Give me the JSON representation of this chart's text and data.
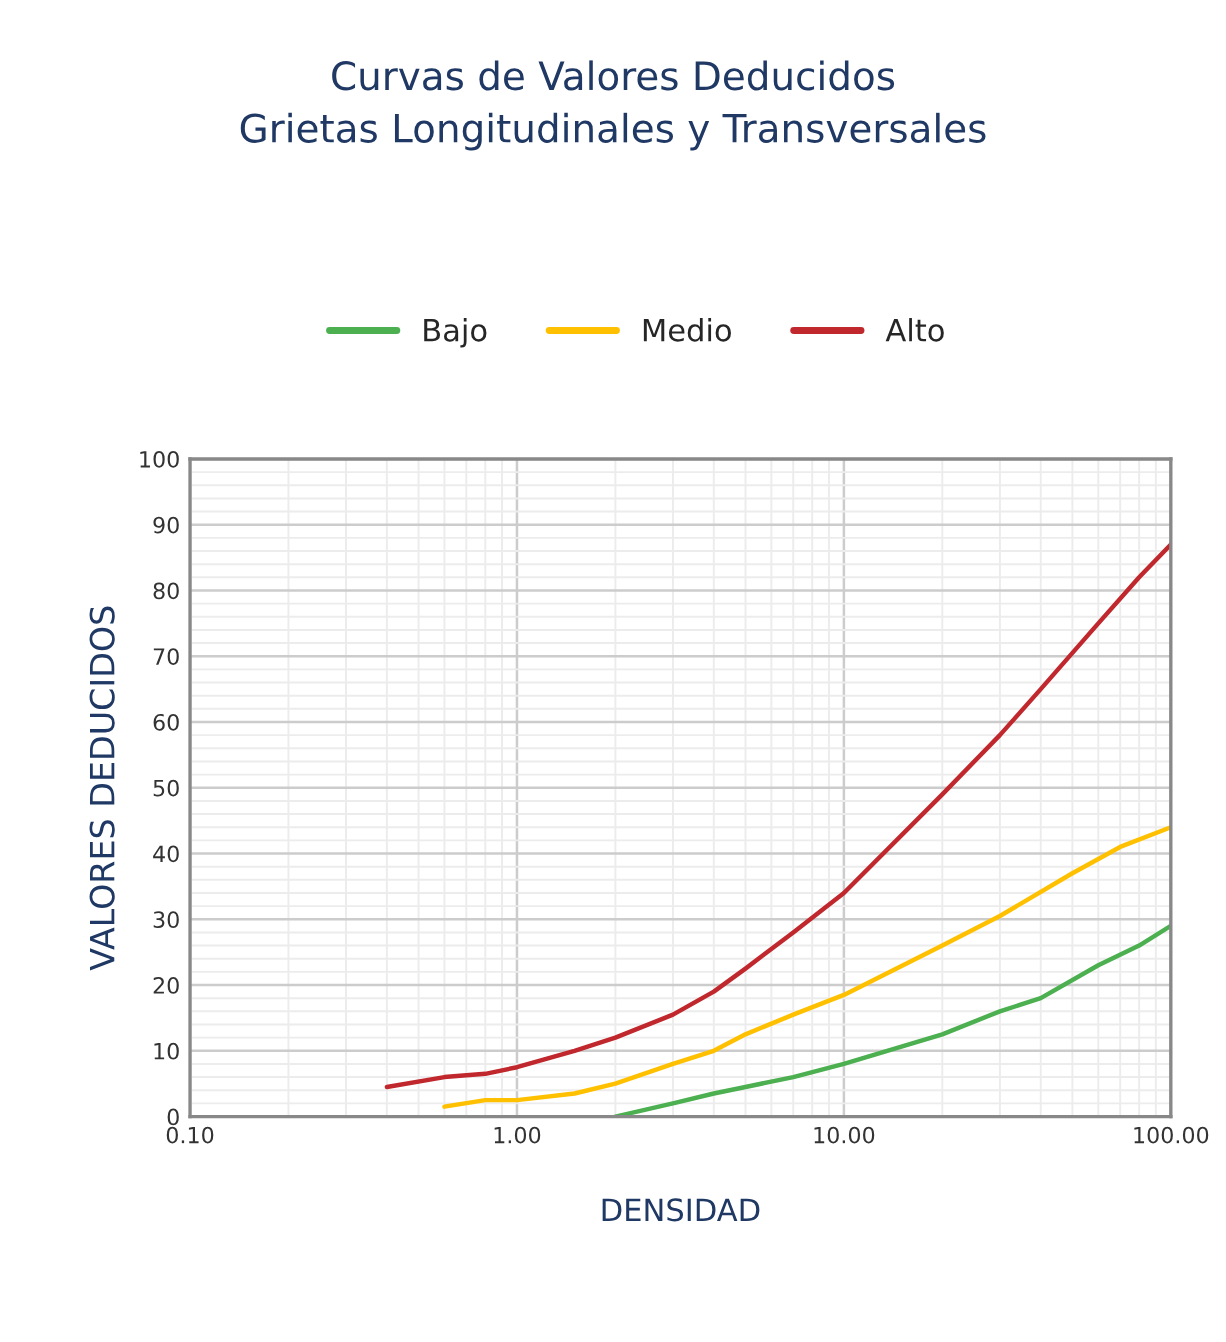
{
  "chart_data": {
    "type": "line",
    "title": "Curvas de Valores Deducidos\nGrietas Longitudinales y Transversales",
    "xlabel": "DENSIDAD",
    "ylabel": "VALORES DEDUCIDOS",
    "log": "x",
    "series": [
      {
        "name": "Bajo",
        "color": "#4caf50",
        "x": [
          2,
          3,
          4,
          5,
          7,
          10,
          20,
          30,
          40,
          60,
          80,
          100
        ],
        "values": [
          0,
          2,
          3.5,
          4.5,
          6,
          8,
          12.5,
          16,
          18,
          23,
          26,
          29
        ]
      },
      {
        "name": "Medio",
        "color": "#ffc000",
        "x": [
          0.6,
          0.8,
          1,
          1.5,
          2,
          3,
          4,
          5,
          7,
          10,
          20,
          30,
          50,
          70,
          100
        ],
        "values": [
          1.5,
          2.5,
          2.5,
          3.5,
          5,
          8,
          10,
          12.5,
          15.5,
          18.5,
          26,
          30.5,
          37,
          41,
          44
        ]
      },
      {
        "name": "Alto",
        "color": "#c0282d",
        "x": [
          0.4,
          0.6,
          0.8,
          1,
          1.5,
          2,
          3,
          4,
          5,
          7,
          10,
          20,
          30,
          40,
          60,
          80,
          100
        ],
        "values": [
          4.5,
          6,
          6.5,
          7.5,
          10,
          12,
          15.5,
          19,
          22.5,
          28,
          34,
          49,
          58,
          65,
          75,
          82,
          87
        ]
      }
    ],
    "xlim": [
      0.1,
      100
    ],
    "xticks": [
      {
        "value": 0.1,
        "label": "0.10"
      },
      {
        "value": 1,
        "label": "1.00"
      },
      {
        "value": 10,
        "label": "10.00"
      },
      {
        "value": 100,
        "label": "100.00"
      }
    ],
    "ylim": [
      0,
      100
    ],
    "yticks": [
      0,
      10,
      20,
      30,
      40,
      50,
      60,
      70,
      80,
      90,
      100
    ],
    "grid": true,
    "legend": "top",
    "marker": "none",
    "line_style": "solid"
  }
}
